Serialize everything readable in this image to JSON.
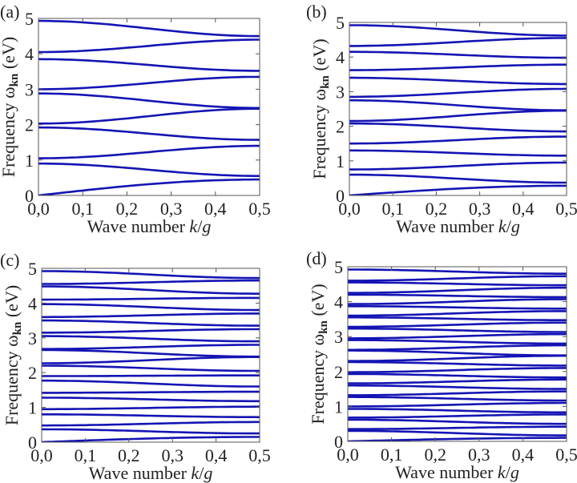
{
  "chart_data": [
    {
      "type": "line",
      "panel_label": "(a)",
      "xlabel_prefix": "Wave number ",
      "xlabel_k": "k",
      "xlabel_sep": "/",
      "xlabel_g": "g",
      "ylabel_prefix": "Frequency ω",
      "ylabel_sub": "kn",
      "ylabel_suffix": " (eV)",
      "xlim": [
        0,
        0.5
      ],
      "ylim": [
        0,
        5
      ],
      "xticks": [
        "0,0",
        "0,1",
        "0,2",
        "0,3",
        "0,4",
        "0,5"
      ],
      "yticks": [
        "0",
        "1",
        "2",
        "3",
        "4",
        "5"
      ],
      "line_color": "#1414b4",
      "bands_k0_to_k05": [
        [
          0,
          0.45
        ],
        [
          0.9,
          0.55
        ],
        [
          1.05,
          1.4
        ],
        [
          1.92,
          1.57
        ],
        [
          2.03,
          2.45
        ],
        [
          2.88,
          2.47
        ],
        [
          3.0,
          3.35
        ],
        [
          3.85,
          3.52
        ],
        [
          4.05,
          4.4
        ],
        [
          4.93,
          4.5
        ]
      ]
    },
    {
      "type": "line",
      "panel_label": "(b)",
      "xlabel_prefix": "Wave number ",
      "xlabel_k": "k",
      "xlabel_sep": "/",
      "xlabel_g": "g",
      "ylabel_prefix": "Frequency ω",
      "ylabel_sub": "kn",
      "ylabel_suffix": " (eV)",
      "xlim": [
        0,
        0.5
      ],
      "ylim": [
        0,
        5
      ],
      "xticks": [
        "0,0",
        "0,1",
        "0,2",
        "0,3",
        "0,4",
        "0,5"
      ],
      "yticks": [
        "0",
        "1",
        "2",
        "3",
        "4",
        "5"
      ],
      "line_color": "#1414b4",
      "bands_k0_to_k05": [
        [
          0,
          0.28
        ],
        [
          0.6,
          0.37
        ],
        [
          0.75,
          0.95
        ],
        [
          1.3,
          1.15
        ],
        [
          1.5,
          1.7
        ],
        [
          2.08,
          1.85
        ],
        [
          2.15,
          2.45
        ],
        [
          2.75,
          2.46
        ],
        [
          2.85,
          3.08
        ],
        [
          3.4,
          3.22
        ],
        [
          3.62,
          3.78
        ],
        [
          4.15,
          3.98
        ],
        [
          4.32,
          4.55
        ],
        [
          4.92,
          4.62
        ]
      ]
    },
    {
      "type": "line",
      "panel_label": "(c)",
      "xlabel_prefix": "Wave number ",
      "xlabel_k": "k",
      "xlabel_sep": "/",
      "xlabel_g": "g",
      "ylabel_prefix": "Frequency ω",
      "ylabel_sub": "kn",
      "ylabel_suffix": " (eV)",
      "xlim": [
        0,
        0.5
      ],
      "ylim": [
        0,
        5
      ],
      "xticks": [
        "0,0",
        "0,1",
        "0,2",
        "0,3",
        "0,4",
        "0,5"
      ],
      "yticks": [
        "0",
        "1",
        "2",
        "3",
        "4",
        "5"
      ],
      "line_color": "#1414b4",
      "bands_k0_to_k05": [
        [
          0,
          0.15
        ],
        [
          0.37,
          0.25
        ],
        [
          0.48,
          0.58
        ],
        [
          0.8,
          0.72
        ],
        [
          0.95,
          1.02
        ],
        [
          1.28,
          1.18
        ],
        [
          1.42,
          1.45
        ],
        [
          1.77,
          1.6
        ],
        [
          1.9,
          1.92
        ],
        [
          2.2,
          2.05
        ],
        [
          2.27,
          2.45
        ],
        [
          2.65,
          2.46
        ],
        [
          2.68,
          2.8
        ],
        [
          3.05,
          2.9
        ],
        [
          3.15,
          3.25
        ],
        [
          3.5,
          3.35
        ],
        [
          3.6,
          3.7
        ],
        [
          3.97,
          3.8
        ],
        [
          4.1,
          4.15
        ],
        [
          4.48,
          4.27
        ],
        [
          4.55,
          4.65
        ],
        [
          4.92,
          4.72
        ]
      ]
    },
    {
      "type": "line",
      "panel_label": "(d)",
      "xlabel_prefix": "Wave number ",
      "xlabel_k": "k",
      "xlabel_sep": "/",
      "xlabel_g": "g",
      "ylabel_prefix": "Frequency ω",
      "ylabel_sub": "kn",
      "ylabel_suffix": " (eV)",
      "xlim": [
        0,
        0.5
      ],
      "ylim": [
        0,
        5
      ],
      "xticks": [
        "0,0",
        "0,1",
        "0,2",
        "0,3",
        "0,4",
        "0,5"
      ],
      "yticks": [
        "0",
        "1",
        "2",
        "3",
        "4",
        "5"
      ],
      "line_color": "#1414b4",
      "bands_k0_to_k05": [
        [
          0,
          0.1
        ],
        [
          0.3,
          0.17
        ],
        [
          0.35,
          0.42
        ],
        [
          0.62,
          0.5
        ],
        [
          0.68,
          0.77
        ],
        [
          0.93,
          0.83
        ],
        [
          1.0,
          1.1
        ],
        [
          1.27,
          1.17
        ],
        [
          1.32,
          1.43
        ],
        [
          1.6,
          1.5
        ],
        [
          1.66,
          1.77
        ],
        [
          1.93,
          1.83
        ],
        [
          1.98,
          2.1
        ],
        [
          2.27,
          2.17
        ],
        [
          2.3,
          2.45
        ],
        [
          2.6,
          2.46
        ],
        [
          2.62,
          2.75
        ],
        [
          2.9,
          2.8
        ],
        [
          2.95,
          3.07
        ],
        [
          3.23,
          3.13
        ],
        [
          3.28,
          3.4
        ],
        [
          3.55,
          3.47
        ],
        [
          3.6,
          3.73
        ],
        [
          3.87,
          3.8
        ],
        [
          3.93,
          4.07
        ],
        [
          4.2,
          4.13
        ],
        [
          4.25,
          4.4
        ],
        [
          4.55,
          4.47
        ],
        [
          4.6,
          4.73
        ],
        [
          4.92,
          4.8
        ]
      ]
    }
  ]
}
